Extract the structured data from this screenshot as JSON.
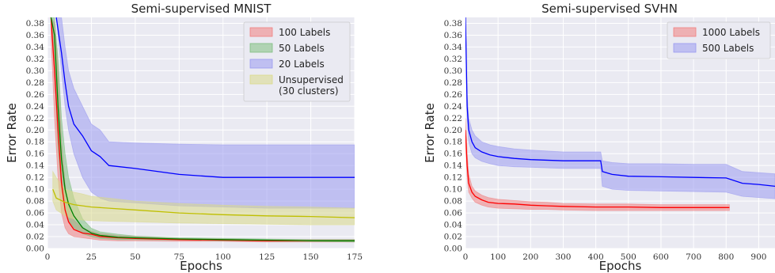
{
  "chart_data": [
    {
      "type": "line",
      "title": "Semi-supervised MNIST",
      "xlabel": "Epochs",
      "ylabel": "Error Rate",
      "xlim": [
        0,
        175
      ],
      "ylim": [
        0,
        0.39
      ],
      "xticks": [
        0,
        25,
        50,
        75,
        100,
        125,
        150,
        175
      ],
      "xtick_labels": [
        "0",
        "25",
        "50",
        "75",
        "100",
        "125",
        "150",
        "175"
      ],
      "yticks": [
        0,
        0.02,
        0.04,
        0.06,
        0.08,
        0.1,
        0.12,
        0.14,
        0.16,
        0.18,
        0.2,
        0.22,
        0.24,
        0.26,
        0.28,
        0.3,
        0.32,
        0.34,
        0.36,
        0.38
      ],
      "ytick_labels": [
        "0.00",
        "0.02",
        "0.04",
        "0.06",
        "0.08",
        "0.10",
        "0.12",
        "0.14",
        "0.16",
        "0.18",
        "0.20",
        "0.22",
        "0.24",
        "0.26",
        "0.28",
        "0.30",
        "0.32",
        "0.34",
        "0.36",
        "0.38"
      ],
      "grid": true,
      "legend_position": "top-right",
      "legend_lines": [
        [
          "100 Labels"
        ],
        [
          "50 Labels"
        ],
        [
          "20 Labels"
        ],
        [
          "Unsupervised",
          "(30 clusters)"
        ]
      ],
      "series": [
        {
          "name": "100 Labels",
          "color": "#ff0000",
          "fill": "#f08080",
          "x": [
            2,
            4,
            6,
            8,
            10,
            12,
            15,
            20,
            25,
            30,
            40,
            50,
            75,
            100,
            125,
            150,
            175
          ],
          "y": [
            0.39,
            0.3,
            0.2,
            0.11,
            0.065,
            0.045,
            0.032,
            0.026,
            0.024,
            0.02,
            0.018,
            0.017,
            0.015,
            0.014,
            0.013,
            0.013,
            0.013
          ],
          "lower": [
            0.36,
            0.22,
            0.12,
            0.06,
            0.035,
            0.025,
            0.02,
            0.018,
            0.016,
            0.014,
            0.013,
            0.013,
            0.012,
            0.012,
            0.011,
            0.011,
            0.011
          ],
          "upper": [
            0.39,
            0.38,
            0.31,
            0.18,
            0.11,
            0.07,
            0.048,
            0.034,
            0.029,
            0.025,
            0.022,
            0.02,
            0.017,
            0.016,
            0.015,
            0.015,
            0.015
          ]
        },
        {
          "name": "50 Labels",
          "color": "#008000",
          "fill": "#7fbf7f",
          "x": [
            2,
            4,
            6,
            8,
            10,
            12,
            15,
            20,
            25,
            30,
            40,
            50,
            75,
            100,
            125,
            150,
            175
          ],
          "y": [
            0.39,
            0.36,
            0.24,
            0.15,
            0.1,
            0.075,
            0.055,
            0.035,
            0.026,
            0.022,
            0.019,
            0.018,
            0.016,
            0.015,
            0.014,
            0.013,
            0.013
          ],
          "lower": [
            0.39,
            0.3,
            0.17,
            0.1,
            0.065,
            0.048,
            0.035,
            0.025,
            0.02,
            0.017,
            0.015,
            0.015,
            0.014,
            0.013,
            0.012,
            0.012,
            0.011
          ],
          "upper": [
            0.39,
            0.39,
            0.32,
            0.22,
            0.16,
            0.12,
            0.085,
            0.05,
            0.034,
            0.028,
            0.024,
            0.021,
            0.018,
            0.017,
            0.016,
            0.015,
            0.015
          ]
        },
        {
          "name": "20 Labels",
          "color": "#0000ff",
          "fill": "#9a9af0",
          "x": [
            5,
            8,
            10,
            12,
            15,
            20,
            25,
            30,
            35,
            50,
            75,
            100,
            125,
            150,
            175
          ],
          "y": [
            0.39,
            0.33,
            0.28,
            0.24,
            0.21,
            0.19,
            0.165,
            0.155,
            0.14,
            0.135,
            0.125,
            0.12,
            0.12,
            0.12,
            0.12
          ],
          "lower": [
            0.39,
            0.3,
            0.24,
            0.2,
            0.16,
            0.12,
            0.095,
            0.085,
            0.08,
            0.077,
            0.072,
            0.07,
            0.068,
            0.068,
            0.068
          ],
          "upper": [
            0.39,
            0.39,
            0.34,
            0.3,
            0.27,
            0.24,
            0.21,
            0.2,
            0.18,
            0.178,
            0.176,
            0.175,
            0.175,
            0.175,
            0.175
          ]
        },
        {
          "name": "Unsupervised\n(30 clusters)",
          "color": "#bfbf00",
          "fill": "#d9d98a",
          "x": [
            3,
            5,
            10,
            15,
            20,
            25,
            35,
            50,
            75,
            100,
            125,
            150,
            175
          ],
          "y": [
            0.1,
            0.085,
            0.078,
            0.074,
            0.072,
            0.07,
            0.068,
            0.065,
            0.06,
            0.057,
            0.055,
            0.054,
            0.052
          ],
          "lower": [
            0.08,
            0.065,
            0.055,
            0.05,
            0.048,
            0.047,
            0.046,
            0.045,
            0.043,
            0.042,
            0.041,
            0.04,
            0.04
          ],
          "upper": [
            0.13,
            0.12,
            0.1,
            0.095,
            0.092,
            0.088,
            0.085,
            0.08,
            0.076,
            0.073,
            0.071,
            0.07,
            0.068
          ]
        }
      ]
    },
    {
      "type": "line",
      "title": "Semi-supervised SVHN",
      "xlabel": "Epochs",
      "ylabel": "Error Rate",
      "xlim": [
        0,
        950
      ],
      "ylim": [
        0,
        0.39
      ],
      "xticks": [
        0,
        100,
        200,
        300,
        400,
        500,
        600,
        700,
        800,
        900
      ],
      "xtick_labels": [
        "0",
        "100",
        "200",
        "300",
        "400",
        "500",
        "600",
        "700",
        "800",
        "900"
      ],
      "yticks": [
        0,
        0.02,
        0.04,
        0.06,
        0.08,
        0.1,
        0.12,
        0.14,
        0.16,
        0.18,
        0.2,
        0.22,
        0.24,
        0.26,
        0.28,
        0.3,
        0.32,
        0.34,
        0.36,
        0.38
      ],
      "ytick_labels": [
        "0.00",
        "0.02",
        "0.04",
        "0.06",
        "0.08",
        "0.10",
        "0.12",
        "0.14",
        "0.16",
        "0.18",
        "0.20",
        "0.22",
        "0.24",
        "0.26",
        "0.28",
        "0.30",
        "0.32",
        "0.34",
        "0.36",
        "0.38"
      ],
      "grid": true,
      "legend_position": "top-right",
      "legend_lines": [
        [
          "1000 Labels"
        ],
        [
          "500 Labels"
        ]
      ],
      "series": [
        {
          "name": "1000 Labels",
          "color": "#ff0000",
          "fill": "#f08080",
          "x": [
            0,
            5,
            10,
            20,
            30,
            50,
            70,
            100,
            150,
            200,
            250,
            300,
            400,
            500,
            600,
            700,
            810
          ],
          "y": [
            0.2,
            0.14,
            0.11,
            0.095,
            0.088,
            0.082,
            0.078,
            0.076,
            0.075,
            0.073,
            0.072,
            0.071,
            0.07,
            0.07,
            0.069,
            0.069,
            0.069
          ],
          "lower": [
            0.18,
            0.12,
            0.095,
            0.085,
            0.078,
            0.073,
            0.07,
            0.068,
            0.067,
            0.066,
            0.066,
            0.065,
            0.064,
            0.064,
            0.064,
            0.064,
            0.064
          ],
          "upper": [
            0.22,
            0.16,
            0.125,
            0.105,
            0.097,
            0.09,
            0.086,
            0.083,
            0.081,
            0.079,
            0.078,
            0.076,
            0.075,
            0.075,
            0.074,
            0.074,
            0.074
          ]
        },
        {
          "name": "500 Labels",
          "color": "#0000ff",
          "fill": "#9a9af0",
          "x": [
            0,
            5,
            10,
            20,
            30,
            50,
            75,
            100,
            150,
            200,
            300,
            415,
            420,
            450,
            500,
            600,
            700,
            800,
            850,
            900,
            950
          ],
          "y": [
            0.39,
            0.24,
            0.2,
            0.18,
            0.17,
            0.163,
            0.158,
            0.155,
            0.152,
            0.15,
            0.148,
            0.148,
            0.13,
            0.125,
            0.122,
            0.121,
            0.12,
            0.119,
            0.11,
            0.108,
            0.105
          ],
          "lower": [
            0.38,
            0.22,
            0.18,
            0.16,
            0.153,
            0.147,
            0.143,
            0.14,
            0.138,
            0.137,
            0.135,
            0.135,
            0.105,
            0.1,
            0.098,
            0.097,
            0.096,
            0.095,
            0.088,
            0.086,
            0.084
          ],
          "upper": [
            0.39,
            0.26,
            0.22,
            0.2,
            0.19,
            0.18,
            0.175,
            0.172,
            0.168,
            0.166,
            0.163,
            0.163,
            0.148,
            0.145,
            0.143,
            0.143,
            0.142,
            0.142,
            0.13,
            0.128,
            0.126
          ]
        }
      ]
    }
  ]
}
